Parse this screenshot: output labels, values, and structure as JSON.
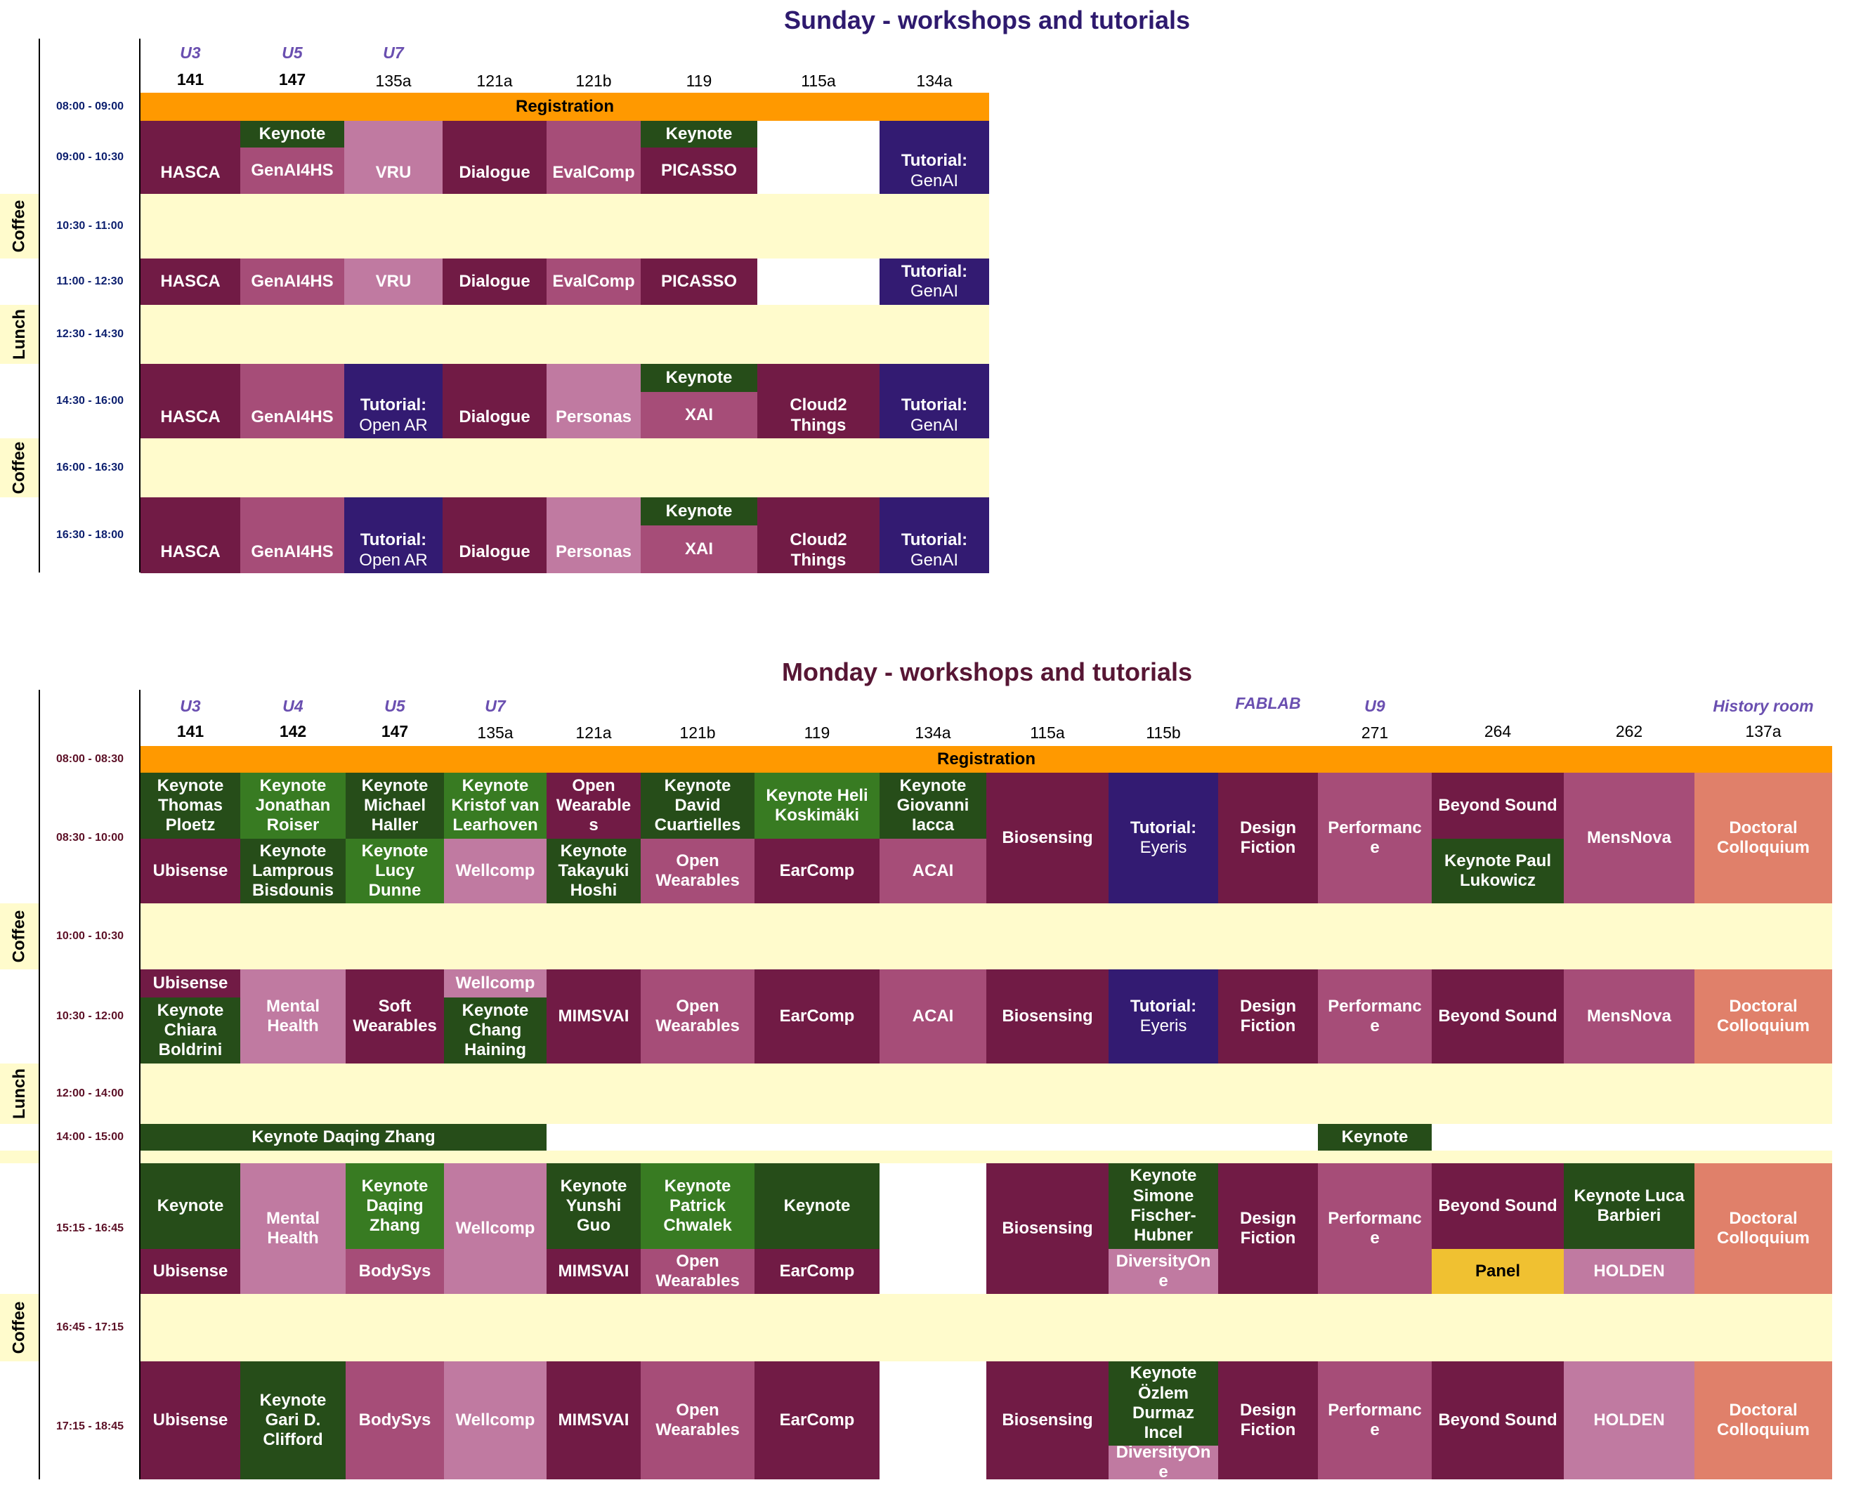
{
  "colors": {
    "registration": "#ff9900",
    "break_band": "#fffbcc",
    "keynote_dark": "#264d19",
    "keynote_light": "#387b22",
    "wine": "#711b45",
    "rose": "#a64d78",
    "pink": "#c07aa1",
    "indigo": "#331b72",
    "salmon": "#e0806a",
    "panel": "#f0c131"
  },
  "sunday": {
    "title": "Sunday - workshops and tutorials",
    "buildings": [
      "U3",
      "U5",
      "U7"
    ],
    "rooms": [
      "141",
      "147",
      "135a",
      "121a",
      "121b",
      "119",
      "115a",
      "134a"
    ],
    "times": [
      "08:00 - 09:00",
      "09:00 - 10:30",
      "10:30 - 11:00",
      "11:00 - 12:30",
      "12:30 - 14:30",
      "14:30 - 16:00",
      "16:00 - 16:30",
      "16:30 - 18:00"
    ],
    "breaks": [
      "Coffee",
      "Lunch",
      "Coffee"
    ],
    "registration": "Registration",
    "s1": {
      "r1": "HASCA",
      "r2_top": "Keynote",
      "r2": "GenAI4HS",
      "r3": "VRU",
      "r4": "Dialogue",
      "r5": "EvalComp",
      "r6_top": "Keynote",
      "r6": "PICASSO",
      "r8_a": "Tutorial:",
      "r8_b": "GenAI"
    },
    "s2": {
      "r1": "HASCA",
      "r2": "GenAI4HS",
      "r3": "VRU",
      "r4": "Dialogue",
      "r5": "EvalComp",
      "r6": "PICASSO",
      "r8_a": "Tutorial:",
      "r8_b": "GenAI"
    },
    "s3": {
      "r1": "HASCA",
      "r2": "GenAI4HS",
      "r3_a": "Tutorial:",
      "r3_b": "Open AR",
      "r4": "Dialogue",
      "r5": "Personas",
      "r6_top": "Keynote",
      "r6": "XAI",
      "r7_a": "Cloud2",
      "r7_b": "Things",
      "r8_a": "Tutorial:",
      "r8_b": "GenAI"
    },
    "s4": {
      "r1": "HASCA",
      "r2": "GenAI4HS",
      "r3_a": "Tutorial:",
      "r3_b": "Open AR",
      "r4": "Dialogue",
      "r5": "Personas",
      "r6_top": "Keynote",
      "r6": "XAI",
      "r7_a": "Cloud2",
      "r7_b": "Things",
      "r8_a": "Tutorial:",
      "r8_b": "GenAI"
    }
  },
  "monday": {
    "title": "Monday - workshops and tutorials",
    "buildings": [
      "U3",
      "U4",
      "U5",
      "U7",
      "FABLAB",
      "U9",
      "History room"
    ],
    "rooms": [
      "141",
      "142",
      "147",
      "135a",
      "121a",
      "121b",
      "119",
      "134a",
      "115a",
      "115b",
      "271",
      "264",
      "262",
      "137a"
    ],
    "times": [
      "08:00 - 08:30",
      "08:30 - 10:00",
      "10:00 - 10:30",
      "10:30 - 12:00",
      "12:00 - 14:00",
      "14:00 - 15:00",
      "15:15 - 16:45",
      "16:45 - 17:15",
      "17:15 - 18:45"
    ],
    "breaks": [
      "Coffee",
      "Lunch",
      "Coffee"
    ],
    "registration": "Registration",
    "s1": {
      "c1_top": [
        "Keynote",
        "Thomas",
        "Ploetz"
      ],
      "c1_bot": "Ubisense",
      "c2_top": [
        "Keynote",
        "Jonathan",
        "Roiser"
      ],
      "c2_bot": [
        "Keynote",
        "Lamprous",
        "Bisdounis"
      ],
      "c3_top": [
        "Keynote",
        "Michael",
        "Haller"
      ],
      "c3_bot": [
        "Keynote",
        "Lucy",
        "Dunne"
      ],
      "c4_top": [
        "Keynote",
        "Kristof van",
        "Learhoven"
      ],
      "c4_bot": "Wellcomp",
      "c5_top": [
        "Open",
        "Wearable",
        "s"
      ],
      "c5_bot": [
        "Keynote",
        "Takayuki",
        "Hoshi"
      ],
      "c6_top": [
        "Keynote",
        "David",
        "Cuartielles"
      ],
      "c6_bot": [
        "Open",
        "Wearables"
      ],
      "c7_top": [
        "Keynote Heli",
        "Koskimäki"
      ],
      "c7_bot": "EarComp",
      "c8_top": [
        "Keynote",
        "Giovanni",
        "Iacca"
      ],
      "c8_bot": "ACAI",
      "c9": "Biosensing",
      "c10_a": "Tutorial:",
      "c10_b": "Eyeris",
      "c11": [
        "Design",
        "Fiction"
      ],
      "c12": [
        "Performanc",
        "e"
      ],
      "c13_top": "Beyond Sound",
      "c13_bot": [
        "Keynote Paul",
        "Lukowicz"
      ],
      "c14": "MensNova",
      "c15": [
        "Doctoral",
        "Colloquium"
      ]
    },
    "s2": {
      "c1_top": "Ubisense",
      "c1_bot": [
        "Keynote",
        "Chiara",
        "Boldrini"
      ],
      "c2": [
        "Mental",
        "Health"
      ],
      "c3": [
        "Soft",
        "Wearables"
      ],
      "c4_top": "Wellcomp",
      "c4_bot": [
        "Keynote",
        "Chang",
        "Haining"
      ],
      "c5": "MIMSVAI",
      "c6": [
        "Open",
        "Wearables"
      ],
      "c7": "EarComp",
      "c8": "ACAI",
      "c9": "Biosensing",
      "c10_a": "Tutorial:",
      "c10_b": "Eyeris",
      "c11": [
        "Design",
        "Fiction"
      ],
      "c12": [
        "Performanc",
        "e"
      ],
      "c13": "Beyond Sound",
      "c14": "MensNova",
      "c15": [
        "Doctoral",
        "Colloquium"
      ]
    },
    "s3": {
      "keynote_wide": "Keynote Daqing Zhang",
      "keynote_u9": "Keynote"
    },
    "s4": {
      "c1_top": "Keynote",
      "c1_bot": "Ubisense",
      "c2": [
        "Mental",
        "Health"
      ],
      "c3_top": [
        "Keynote",
        "Daqing",
        "Zhang"
      ],
      "c3_bot": "BodySys",
      "c4": "Wellcomp",
      "c5_top": [
        "Keynote",
        "Yunshi",
        "Guo"
      ],
      "c5_bot": "MIMSVAI",
      "c6_top": [
        "Keynote",
        "Patrick",
        "Chwalek"
      ],
      "c6_bot": [
        "Open",
        "Wearables"
      ],
      "c7_top": "Keynote",
      "c7_bot": "EarComp",
      "c9": "Biosensing",
      "c10_top": [
        "Keynote",
        "Simone",
        "Fischer-",
        "Hubner"
      ],
      "c10_bot": [
        "DiversityOn",
        "e"
      ],
      "c11": [
        "Design",
        "Fiction"
      ],
      "c12": [
        "Performanc",
        "e"
      ],
      "c13_top": "Beyond Sound",
      "c13_bot": "Panel",
      "c14_top": [
        "Keynote Luca",
        "Barbieri"
      ],
      "c14_bot": "HOLDEN",
      "c15": [
        "Doctoral",
        "Colloquium"
      ]
    },
    "s5": {
      "c1": "Ubisense",
      "c2": [
        "Keynote",
        "Gari D.",
        "Clifford"
      ],
      "c3": "BodySys",
      "c4": "Wellcomp",
      "c5": "MIMSVAI",
      "c6": [
        "Open",
        "Wearables"
      ],
      "c7": "EarComp",
      "c9": "Biosensing",
      "c10_top": [
        "Keynote",
        "Özlem",
        "Durmaz",
        "Incel"
      ],
      "c10_bot": [
        "DiversityOn",
        "e"
      ],
      "c11": [
        "Design",
        "Fiction"
      ],
      "c12": [
        "Performanc",
        "e"
      ],
      "c13": "Beyond Sound",
      "c14": "HOLDEN",
      "c15": [
        "Doctoral",
        "Colloquium"
      ]
    }
  }
}
